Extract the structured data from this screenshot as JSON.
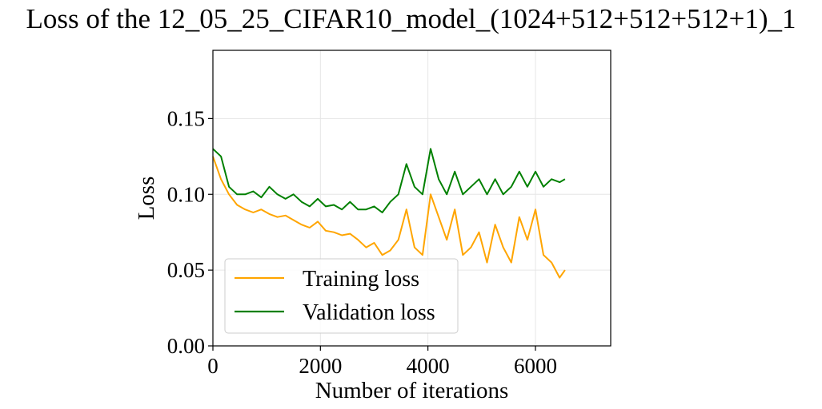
{
  "chart_data": {
    "type": "line",
    "title": "Loss of the 12_05_25_CIFAR10_model_(1024+512+512+512+1)_1",
    "xlabel": "Number of iterations",
    "ylabel": "Loss",
    "xlim": [
      0,
      7400
    ],
    "ylim": [
      0,
      0.195
    ],
    "x_ticks": [
      0,
      2000,
      4000,
      6000
    ],
    "x_tick_labels": [
      "0",
      "2000",
      "4000",
      "6000"
    ],
    "y_ticks": [
      0.0,
      0.05,
      0.1,
      0.15
    ],
    "y_tick_labels": [
      "0.00",
      "0.05",
      "0.10",
      "0.15"
    ],
    "grid": true,
    "legend_position": "lower-left",
    "series": [
      {
        "name": "Training loss",
        "color": "#FFA500",
        "x": [
          0,
          150,
          300,
          450,
          600,
          750,
          900,
          1050,
          1200,
          1350,
          1500,
          1650,
          1800,
          1950,
          2100,
          2250,
          2400,
          2550,
          2700,
          2850,
          3000,
          3150,
          3300,
          3450,
          3600,
          3750,
          3900,
          4050,
          4200,
          4350,
          4500,
          4650,
          4800,
          4950,
          5100,
          5250,
          5400,
          5550,
          5700,
          5850,
          6000,
          6150,
          6300,
          6450,
          6550
        ],
        "y": [
          0.125,
          0.11,
          0.1,
          0.093,
          0.09,
          0.088,
          0.09,
          0.087,
          0.085,
          0.086,
          0.083,
          0.08,
          0.078,
          0.082,
          0.076,
          0.075,
          0.073,
          0.074,
          0.07,
          0.065,
          0.068,
          0.06,
          0.063,
          0.07,
          0.09,
          0.065,
          0.06,
          0.1,
          0.085,
          0.07,
          0.09,
          0.06,
          0.065,
          0.075,
          0.055,
          0.08,
          0.065,
          0.055,
          0.085,
          0.07,
          0.09,
          0.06,
          0.055,
          0.045,
          0.05
        ]
      },
      {
        "name": "Validation loss",
        "color": "#008000",
        "x": [
          0,
          150,
          300,
          450,
          600,
          750,
          900,
          1050,
          1200,
          1350,
          1500,
          1650,
          1800,
          1950,
          2100,
          2250,
          2400,
          2550,
          2700,
          2850,
          3000,
          3150,
          3300,
          3450,
          3600,
          3750,
          3900,
          4050,
          4200,
          4350,
          4500,
          4650,
          4800,
          4950,
          5100,
          5250,
          5400,
          5550,
          5700,
          5850,
          6000,
          6150,
          6300,
          6450,
          6550
        ],
        "y": [
          0.13,
          0.125,
          0.105,
          0.1,
          0.1,
          0.102,
          0.098,
          0.105,
          0.1,
          0.097,
          0.1,
          0.095,
          0.092,
          0.097,
          0.092,
          0.093,
          0.09,
          0.095,
          0.09,
          0.09,
          0.092,
          0.088,
          0.095,
          0.1,
          0.12,
          0.105,
          0.1,
          0.13,
          0.11,
          0.1,
          0.115,
          0.1,
          0.105,
          0.11,
          0.1,
          0.11,
          0.1,
          0.105,
          0.115,
          0.105,
          0.115,
          0.105,
          0.11,
          0.108,
          0.11
        ]
      }
    ]
  }
}
